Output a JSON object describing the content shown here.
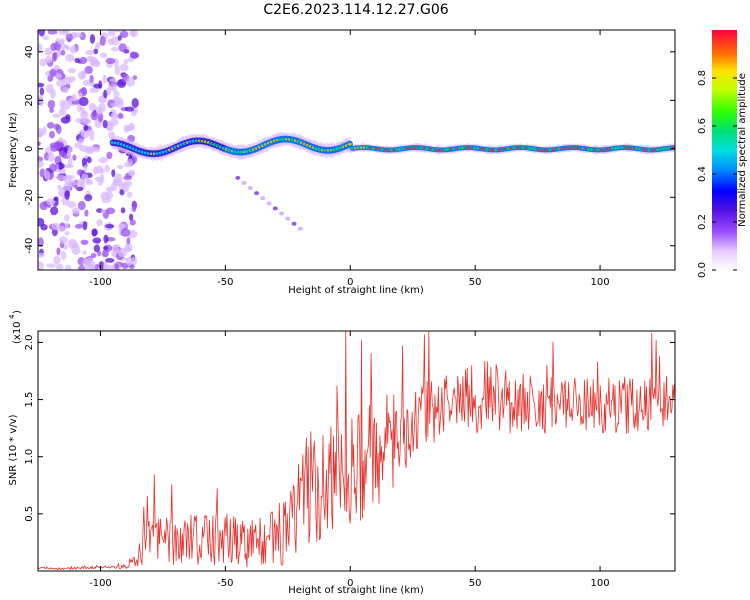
{
  "title": "C2E6.2023.114.12.27.G06",
  "chart_data": [
    {
      "type": "heatmap",
      "xlabel": "Height of straight line (km)",
      "ylabel": "Frequency (Hz)",
      "xlim": [
        -125,
        130
      ],
      "ylim": [
        -50,
        49
      ],
      "xticks": [
        -100,
        -50,
        0,
        50,
        100
      ],
      "xtick_labels": [
        "-100",
        "-50",
        "0",
        "50",
        "100"
      ],
      "yticks": [
        -40,
        -20,
        0,
        20,
        40
      ],
      "ytick_labels": [
        "-40",
        "-20",
        "0",
        "20",
        "40"
      ],
      "colorbar": {
        "label": "Normalized spectral amplitude",
        "range": [
          0,
          1
        ],
        "ticks": [
          0.0,
          0.2,
          0.4,
          0.6,
          0.8
        ],
        "tick_labels": [
          "0.0",
          "0.2",
          "0.4",
          "0.6",
          "0.8"
        ]
      },
      "features": {
        "noise_region_x": [
          -125,
          -90
        ],
        "carrier_frequency_hz": 0,
        "carrier_start_x": -95,
        "side_streak": {
          "x": [
            -45,
            -20
          ],
          "y": [
            -12,
            -33
          ]
        }
      }
    },
    {
      "type": "line",
      "xlabel": "Height of straight line (km)",
      "ylabel": "SNR (10 * v/v)",
      "scale_label": "(x10",
      "scale_exponent": "4",
      "xlim": [
        -125,
        130
      ],
      "ylim": [
        0,
        2.1
      ],
      "xticks": [
        -100,
        -50,
        0,
        50,
        100
      ],
      "xtick_labels": [
        "-100",
        "-50",
        "0",
        "50",
        "100"
      ],
      "yticks": [
        0.5,
        1.0,
        1.5,
        2.0
      ],
      "ytick_labels": [
        "0.5",
        "1.0",
        "1.5",
        "2.0"
      ],
      "series": [
        {
          "name": "SNR",
          "color": "#e8302a",
          "x": [
            -125,
            -115,
            -105,
            -95,
            -90,
            -85,
            -80,
            -75,
            -70,
            -65,
            -60,
            -55,
            -50,
            -45,
            -40,
            -35,
            -30,
            -25,
            -20,
            -15,
            -10,
            -5,
            0,
            5,
            10,
            15,
            20,
            25,
            30,
            35,
            40,
            45,
            50,
            55,
            60,
            65,
            70,
            75,
            80,
            85,
            90,
            95,
            100,
            105,
            110,
            115,
            120,
            125,
            130
          ],
          "y": [
            0.03,
            0.02,
            0.03,
            0.03,
            0.04,
            0.13,
            0.3,
            0.28,
            0.26,
            0.3,
            0.3,
            0.28,
            0.28,
            0.27,
            0.25,
            0.27,
            0.3,
            0.35,
            0.6,
            0.7,
            0.75,
            0.82,
            0.9,
            0.95,
            1.0,
            1.1,
            1.2,
            1.3,
            1.35,
            1.42,
            1.48,
            1.52,
            1.55,
            1.55,
            1.52,
            1.5,
            1.48,
            1.46,
            1.45,
            1.44,
            1.45,
            1.45,
            1.44,
            1.45,
            1.45,
            1.46,
            1.47,
            1.48,
            1.45
          ],
          "noise_amplitude": [
            0.01,
            0.01,
            0.01,
            0.01,
            0.02,
            0.12,
            0.22,
            0.22,
            0.22,
            0.22,
            0.25,
            0.25,
            0.25,
            0.25,
            0.22,
            0.22,
            0.25,
            0.35,
            0.5,
            0.55,
            0.55,
            0.5,
            0.5,
            0.5,
            0.45,
            0.45,
            0.4,
            0.35,
            0.3,
            0.3,
            0.3,
            0.3,
            0.35,
            0.3,
            0.3,
            0.3,
            0.28,
            0.26,
            0.25,
            0.25,
            0.25,
            0.25,
            0.25,
            0.25,
            0.25,
            0.25,
            0.25,
            0.25,
            0.25
          ]
        }
      ]
    }
  ]
}
